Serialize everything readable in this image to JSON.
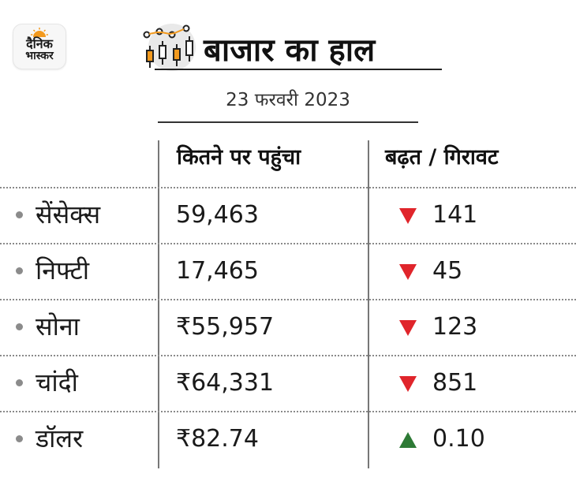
{
  "brand": {
    "logo_line1": "दैनिक",
    "logo_line2": "भास्कर",
    "accent": "#f39a1e"
  },
  "title": "बाजार का हाल",
  "date": "23 फरवरी 2023",
  "headers": {
    "value": "कितने पर पहुंचा",
    "change": "बढ़त / गिरावट"
  },
  "colors": {
    "down": "#e0252b",
    "up": "#2d7a35",
    "text": "#1a1a1a"
  },
  "rows": [
    {
      "name": "सेंसेक्स",
      "value": "59,463",
      "direction": "down",
      "change": "141"
    },
    {
      "name": "निफ्टी",
      "value": "17,465",
      "direction": "down",
      "change": "45"
    },
    {
      "name": "सोना",
      "value": "₹55,957",
      "direction": "down",
      "change": "123"
    },
    {
      "name": "चांदी",
      "value": "₹64,331",
      "direction": "down",
      "change": "851"
    },
    {
      "name": "डॉलर",
      "value": "₹82.74",
      "direction": "up",
      "change": "0.10"
    }
  ]
}
